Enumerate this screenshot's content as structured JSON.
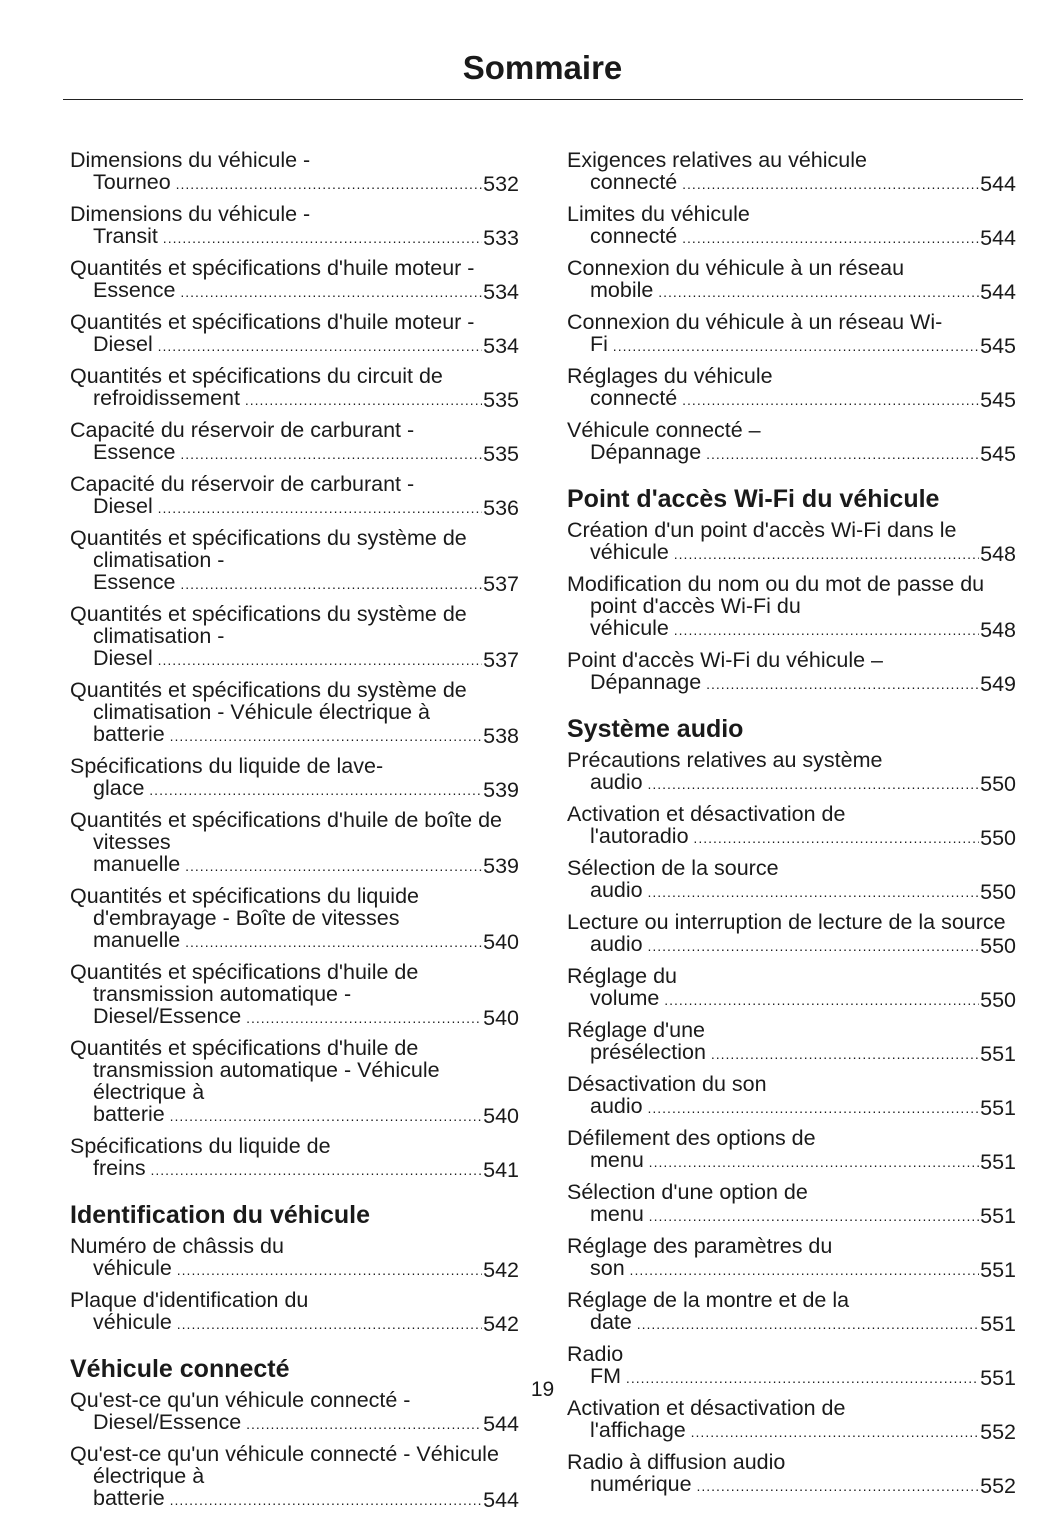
{
  "header": {
    "title": "Sommaire"
  },
  "columns": [
    {
      "sections": [
        {
          "entries": [
            {
              "text": "Dimensions du véhicule - Tourneo",
              "page": 532
            },
            {
              "text": "Dimensions du véhicule - Transit",
              "page": 533
            },
            {
              "text": "Quantités et spécifications d'huile moteur - Essence",
              "page": 534
            },
            {
              "text": "Quantités et spécifications d'huile moteur - Diesel",
              "page": 534
            },
            {
              "text": "Quantités et spécifications du circuit de refroidissement",
              "page": 535
            },
            {
              "text": "Capacité du réservoir de carburant - Essence",
              "page": 535
            },
            {
              "text": "Capacité du réservoir de carburant - Diesel",
              "page": 536
            },
            {
              "text": "Quantités et spécifications du système de climatisation - Essence",
              "page": 537
            },
            {
              "text": "Quantités et spécifications du système de climatisation - Diesel",
              "page": 537
            },
            {
              "text": "Quantités et spécifications du système de climatisation - Véhicule électrique à batterie",
              "page": 538
            },
            {
              "text": "Spécifications du liquide de lave-glace",
              "page": 539
            },
            {
              "text": "Quantités et spécifications d'huile de boîte de vitesses manuelle",
              "page": 539
            },
            {
              "text": "Quantités et spécifications du liquide d'embrayage - Boîte de vitesses manuelle",
              "page": 540
            },
            {
              "text": "Quantités et spécifications d'huile de transmission automatique - Diesel/Essence",
              "page": 540
            },
            {
              "text": "Quantités et spécifications d'huile de transmission automatique - Véhicule électrique à batterie",
              "page": 540
            },
            {
              "text": "Spécifications du liquide de freins",
              "page": 541
            }
          ]
        },
        {
          "heading": "Identification du véhicule",
          "entries": [
            {
              "text": "Numéro de châssis du véhicule",
              "page": 542
            },
            {
              "text": "Plaque d'identification du véhicule",
              "page": 542
            }
          ]
        },
        {
          "heading": "Véhicule connecté",
          "entries": [
            {
              "text": "Qu'est-ce qu'un véhicule connecté - Diesel/Essence",
              "page": 544
            },
            {
              "text": "Qu'est-ce qu'un véhicule connecté - Véhicule électrique à batterie",
              "page": 544
            }
          ]
        }
      ]
    },
    {
      "sections": [
        {
          "entries": [
            {
              "text": "Exigences relatives au véhicule connecté",
              "page": 544
            },
            {
              "text": "Limites du véhicule connecté",
              "page": 544
            },
            {
              "text": "Connexion du véhicule à un réseau mobile",
              "page": 544
            },
            {
              "text": "Connexion du véhicule à un réseau Wi-Fi",
              "page": 545
            },
            {
              "text": "Réglages du véhicule connecté",
              "page": 545
            },
            {
              "text": "Véhicule connecté – Dépannage",
              "page": 545
            }
          ]
        },
        {
          "heading": "Point d'accès Wi-Fi du véhicule",
          "entries": [
            {
              "text": "Création d'un point d'accès Wi-Fi dans le véhicule",
              "page": 548
            },
            {
              "text": "Modification du nom ou du mot de passe du point d'accès Wi-Fi du véhicule",
              "page": 548
            },
            {
              "text": "Point d'accès Wi-Fi du véhicule – Dépannage",
              "page": 549
            }
          ]
        },
        {
          "heading": "Système audio",
          "entries": [
            {
              "text": "Précautions relatives au système audio",
              "page": 550
            },
            {
              "text": "Activation et désactivation de l'autoradio",
              "page": 550
            },
            {
              "text": "Sélection de la source audio",
              "page": 550
            },
            {
              "text": "Lecture ou interruption de lecture de la source audio",
              "page": 550
            },
            {
              "text": "Réglage du volume",
              "page": 550
            },
            {
              "text": "Réglage d'une présélection",
              "page": 551
            },
            {
              "text": "Désactivation du son audio",
              "page": 551
            },
            {
              "text": "Défilement des options de menu",
              "page": 551
            },
            {
              "text": "Sélection d'une option de menu",
              "page": 551
            },
            {
              "text": "Réglage des paramètres du son",
              "page": 551
            },
            {
              "text": "Réglage de la montre et de la date",
              "page": 551
            },
            {
              "text": "Radio FM",
              "page": 551
            },
            {
              "text": "Activation et désactivation de l'affichage",
              "page": 552
            },
            {
              "text": "Radio à diffusion audio numérique",
              "page": 552
            }
          ]
        }
      ]
    }
  ],
  "footer": {
    "page_number": 19
  }
}
